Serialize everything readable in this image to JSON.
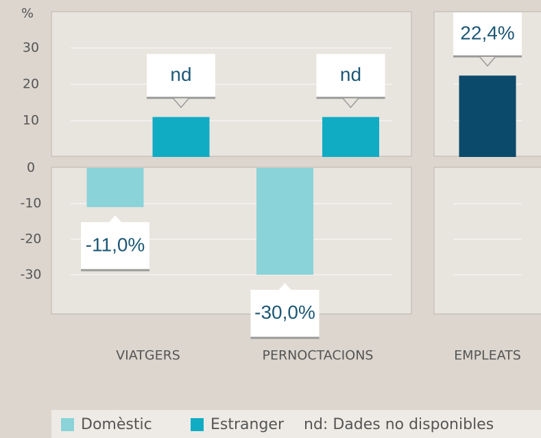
{
  "chart_data": {
    "type": "bar",
    "ylabel": "%",
    "categories": [
      "VIATGERS",
      "PERNOCTACIONS",
      "EMPLEATS"
    ],
    "series": [
      {
        "name": "Domèstic",
        "color": "#8ad3d8",
        "point_colors": [
          "#8ad3d8",
          "#8ad3d8",
          "#0b4a6a"
        ],
        "values": [
          -11.0,
          -30.0,
          22.4
        ],
        "value_labels": [
          "-11,0%",
          "-30,0%",
          "22,4%"
        ]
      },
      {
        "name": "Estranger",
        "color": "#10acc4",
        "values": [
          11,
          11,
          null
        ],
        "value_labels": [
          "nd",
          "nd",
          null
        ]
      }
    ],
    "ylim": [
      -41,
      40
    ],
    "yticks": [
      30,
      20,
      10,
      0,
      -10,
      -20,
      -30
    ],
    "grid": true,
    "note": "nd: Dades no disponibles",
    "legend": "bottom"
  }
}
